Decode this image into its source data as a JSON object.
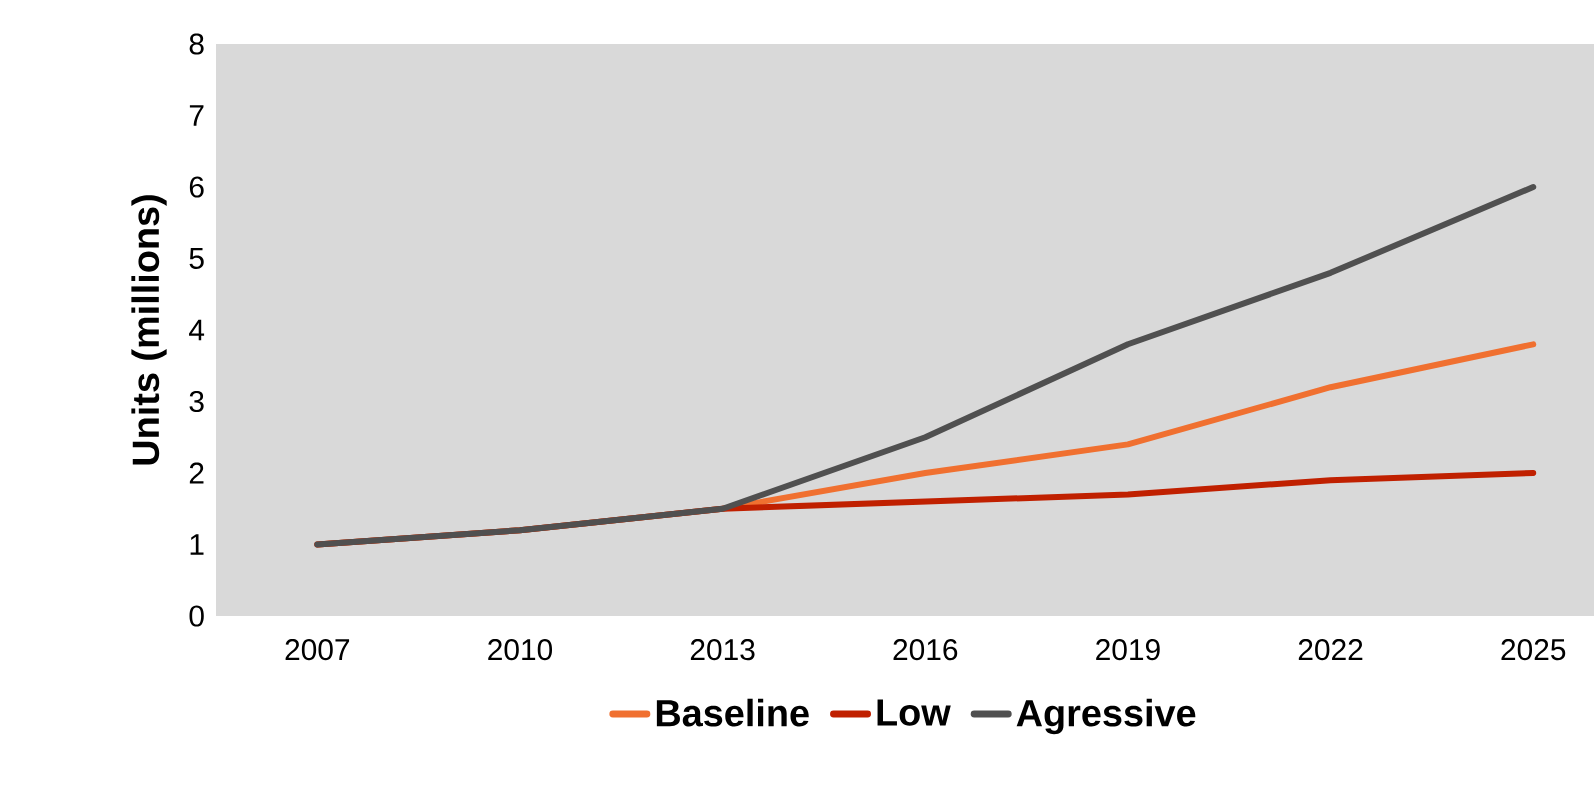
{
  "chart_data": {
    "type": "line",
    "ylabel": "Units (millions)",
    "categories": [
      "2007",
      "2010",
      "2013",
      "2016",
      "2019",
      "2022",
      "2025"
    ],
    "series": [
      {
        "name": "Baseline",
        "color": "#f07030",
        "values": [
          1,
          1.2,
          1.5,
          2.0,
          2.4,
          3.2,
          3.8
        ]
      },
      {
        "name": "Low",
        "color": "#c02000",
        "values": [
          1,
          1.2,
          1.5,
          1.6,
          1.7,
          1.9,
          2.0
        ]
      },
      {
        "name": "Agressive",
        "color": "#505050",
        "values": [
          1,
          1.2,
          1.5,
          2.5,
          3.8,
          4.8,
          6.0
        ]
      }
    ],
    "ylim": [
      0,
      8
    ],
    "yticks": [
      0,
      1,
      2,
      3,
      4,
      5,
      6,
      7,
      8
    ],
    "grid": false,
    "legend": "bottom",
    "marker": "none",
    "line_style": "solid"
  }
}
